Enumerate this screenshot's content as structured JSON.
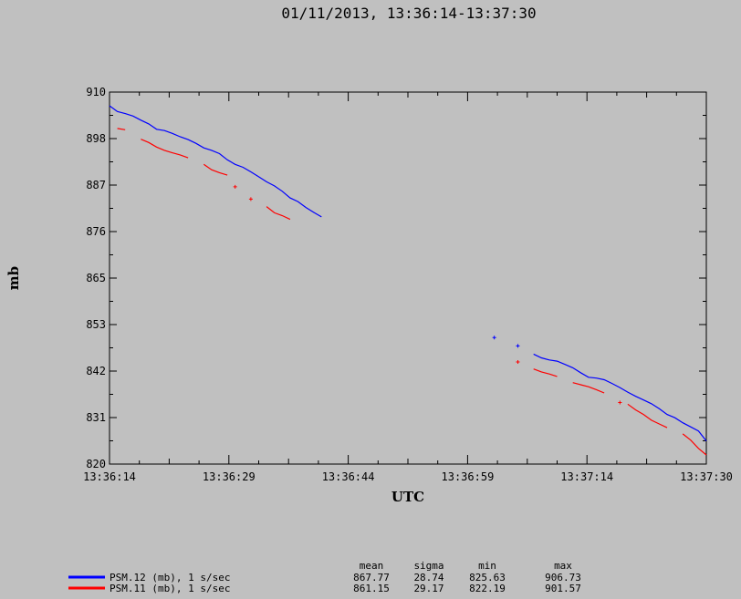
{
  "chart_data": {
    "type": "line",
    "title": "01/11/2013, 13:36:14-13:37:30",
    "xlabel": "UTC",
    "ylabel": "mb",
    "xlim": [
      "13:36:14",
      "13:37:30"
    ],
    "ylim": [
      820,
      910
    ],
    "x_ticks": [
      "13:36:14",
      "13:36:29",
      "13:36:44",
      "13:36:59",
      "13:37:14",
      "13:37:30"
    ],
    "y_ticks": [
      "910",
      "898",
      "887",
      "876",
      "865",
      "853",
      "842",
      "831",
      "820"
    ],
    "grid": false,
    "series": [
      {
        "name": "PSM.12 (mb), 1 s/sec",
        "color": "#0000ff",
        "segments": [
          [
            [
              "13:36:14",
              906.7
            ],
            [
              "13:36:15",
              905.3
            ],
            [
              "13:36:16",
              904.8
            ],
            [
              "13:36:17",
              904.2
            ],
            [
              "13:36:18",
              903.2
            ],
            [
              "13:36:19",
              902.3
            ],
            [
              "13:36:20",
              901.0
            ],
            [
              "13:36:21",
              900.7
            ],
            [
              "13:36:22",
              900.0
            ],
            [
              "13:36:23",
              899.2
            ],
            [
              "13:36:24",
              898.5
            ],
            [
              "13:36:25",
              897.6
            ],
            [
              "13:36:26",
              896.5
            ],
            [
              "13:36:27",
              895.9
            ],
            [
              "13:36:28",
              895.1
            ],
            [
              "13:36:29",
              893.6
            ],
            [
              "13:36:30",
              892.5
            ],
            [
              "13:36:31",
              891.8
            ],
            [
              "13:36:32",
              890.7
            ],
            [
              "13:36:33",
              889.5
            ],
            [
              "13:36:34",
              888.3
            ],
            [
              "13:36:35",
              887.3
            ],
            [
              "13:36:36",
              886.0
            ],
            [
              "13:36:37",
              884.4
            ],
            [
              "13:36:38",
              883.5
            ],
            [
              "13:36:39",
              882.1
            ],
            [
              "13:36:40",
              880.9
            ],
            [
              "13:36:41",
              879.8
            ]
          ],
          [
            [
              "13:37:08",
              846.6
            ],
            [
              "13:37:09",
              845.7
            ],
            [
              "13:37:10",
              845.2
            ],
            [
              "13:37:11",
              844.9
            ],
            [
              "13:37:12",
              844.1
            ],
            [
              "13:37:13",
              843.3
            ],
            [
              "13:37:14",
              842.1
            ],
            [
              "13:37:15",
              841.0
            ],
            [
              "13:37:16",
              840.8
            ],
            [
              "13:37:17",
              840.4
            ],
            [
              "13:37:18",
              839.5
            ],
            [
              "13:37:19",
              838.5
            ],
            [
              "13:37:20",
              837.4
            ],
            [
              "13:37:21",
              836.4
            ],
            [
              "13:37:22",
              835.5
            ],
            [
              "13:37:23",
              834.6
            ],
            [
              "13:37:24",
              833.4
            ],
            [
              "13:37:25",
              832.0
            ],
            [
              "13:37:26",
              831.2
            ],
            [
              "13:37:27",
              830.0
            ],
            [
              "13:37:28",
              829.0
            ],
            [
              "13:37:29",
              828.0
            ],
            [
              "13:37:30",
              825.6
            ]
          ]
        ],
        "points": [
          [
            "13:37:03",
            850.6
          ],
          [
            "13:37:06",
            848.6
          ]
        ]
      },
      {
        "name": "PSM.11 (mb), 1 s/sec",
        "color": "#ff0000",
        "segments": [
          [
            [
              "13:36:15",
              901.2
            ],
            [
              "13:36:16",
              900.9
            ]
          ],
          [
            [
              "13:36:18",
              898.6
            ],
            [
              "13:36:19",
              897.8
            ],
            [
              "13:36:20",
              896.7
            ],
            [
              "13:36:21",
              895.9
            ],
            [
              "13:36:22",
              895.3
            ],
            [
              "13:36:23",
              894.8
            ],
            [
              "13:36:24",
              894.1
            ]
          ],
          [
            [
              "13:36:26",
              892.5
            ],
            [
              "13:36:27",
              891.2
            ],
            [
              "13:36:28",
              890.5
            ],
            [
              "13:36:29",
              889.9
            ]
          ],
          [
            [
              "13:36:34",
              882.3
            ],
            [
              "13:36:35",
              880.8
            ],
            [
              "13:36:36",
              880.1
            ],
            [
              "13:36:37",
              879.2
            ]
          ],
          [
            [
              "13:37:08",
              843.0
            ],
            [
              "13:37:09",
              842.3
            ],
            [
              "13:37:10",
              841.8
            ],
            [
              "13:37:11",
              841.2
            ]
          ],
          [
            [
              "13:37:13",
              839.7
            ],
            [
              "13:37:14",
              839.2
            ],
            [
              "13:37:15",
              838.7
            ],
            [
              "13:37:16",
              838.0
            ],
            [
              "13:37:17",
              837.2
            ]
          ],
          [
            [
              "13:37:20",
              834.5
            ],
            [
              "13:37:21",
              833.1
            ],
            [
              "13:37:22",
              832.0
            ],
            [
              "13:37:23",
              830.6
            ],
            [
              "13:37:24",
              829.7
            ],
            [
              "13:37:25",
              828.8
            ]
          ],
          [
            [
              "13:37:27",
              827.3
            ],
            [
              "13:37:28",
              825.8
            ],
            [
              "13:37:29",
              823.8
            ],
            [
              "13:37:30",
              822.2
            ]
          ]
        ],
        "points": [
          [
            "13:36:30",
            887.1
          ],
          [
            "13:36:32",
            884.1
          ],
          [
            "13:37:06",
            844.7
          ],
          [
            "13:37:19",
            834.9
          ]
        ]
      }
    ],
    "stats": {
      "headers": [
        "mean",
        "sigma",
        "min",
        "max"
      ],
      "rows": [
        {
          "name": "PSM.12 (mb), 1 s/sec",
          "color": "#0000ff",
          "values": [
            "867.77",
            "28.74",
            "825.63",
            "906.73"
          ]
        },
        {
          "name": "PSM.11 (mb), 1 s/sec",
          "color": "#ff0000",
          "values": [
            "861.15",
            "29.17",
            "822.19",
            "901.57"
          ]
        }
      ]
    }
  }
}
